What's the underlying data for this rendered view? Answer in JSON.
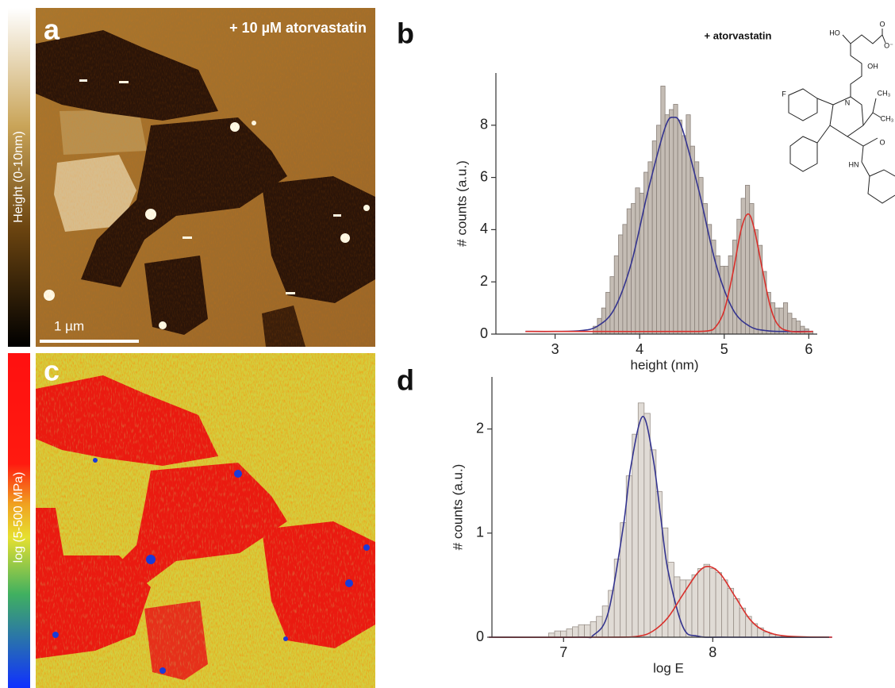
{
  "panels": {
    "a": {
      "label": "a",
      "annotation": "+ 10 µM atorvastatin",
      "colorbar_label": "Height (0-10nm)",
      "scale_bar": "1 µm"
    },
    "c": {
      "label": "c",
      "colorbar_label": "log (5-500 MPa)"
    }
  },
  "molecule": {
    "labels": [
      "HO",
      "O",
      "O⁻",
      "OH",
      "F",
      "N",
      "CH₃",
      "CH₃",
      "O",
      "HN"
    ]
  },
  "chart_data": [
    {
      "type": "histogram",
      "panel_label": "b",
      "annotation": "+ atorvastatin",
      "xlabel": "height (nm)",
      "ylabel": "# counts (a.u.)",
      "bins": [
        3.45,
        3.5,
        3.55,
        3.6,
        3.65,
        3.7,
        3.75,
        3.8,
        3.85,
        3.9,
        3.95,
        4.0,
        4.05,
        4.1,
        4.15,
        4.2,
        4.25,
        4.3,
        4.35,
        4.4,
        4.45,
        4.5,
        4.55,
        4.6,
        4.65,
        4.7,
        4.75,
        4.8,
        4.85,
        4.9,
        4.95,
        5.0,
        5.05,
        5.1,
        5.15,
        5.2,
        5.25,
        5.3,
        5.35,
        5.4,
        5.45,
        5.5,
        5.55,
        5.6,
        5.65,
        5.7,
        5.75,
        5.8,
        5.85,
        5.9,
        5.95,
        6.0,
        6.05
      ],
      "values": [
        0.3,
        0.6,
        1.0,
        1.6,
        2.2,
        3.0,
        3.8,
        4.2,
        4.8,
        5.0,
        5.6,
        5.4,
        6.2,
        6.6,
        7.4,
        8.0,
        9.5,
        8.4,
        8.6,
        8.8,
        8.2,
        7.6,
        8.4,
        7.2,
        6.6,
        6.0,
        5.0,
        4.2,
        3.6,
        3.0,
        2.6,
        2.6,
        3.0,
        3.6,
        4.4,
        5.2,
        5.7,
        5.0,
        4.0,
        3.4,
        2.4,
        1.6,
        1.2,
        1.0,
        1.0,
        1.2,
        0.8,
        0.6,
        0.5,
        0.3,
        0.2,
        0.1
      ],
      "color": "#c4bcb4",
      "edgecolor": "#8a817a",
      "fits": [
        {
          "color": "#34348f",
          "x": [
            2.65,
            3.0,
            3.3,
            3.5,
            3.7,
            3.9,
            4.1,
            4.3,
            4.4,
            4.5,
            4.7,
            4.9,
            5.1,
            5.3,
            5.5,
            5.7,
            6.05
          ],
          "values": [
            0.1,
            0.1,
            0.13,
            0.3,
            0.96,
            2.7,
            5.5,
            7.9,
            8.3,
            7.9,
            5.5,
            2.7,
            0.96,
            0.3,
            0.13,
            0.1,
            0.1
          ]
        },
        {
          "color": "#d9302c",
          "x": [
            2.65,
            3.5,
            4.5,
            4.8,
            4.9,
            5.0,
            5.1,
            5.2,
            5.28,
            5.35,
            5.45,
            5.55,
            5.65,
            5.8,
            6.05
          ],
          "values": [
            0.1,
            0.1,
            0.1,
            0.12,
            0.28,
            0.9,
            2.3,
            4.0,
            4.6,
            4.1,
            2.5,
            1.0,
            0.3,
            0.1,
            0.1
          ]
        }
      ],
      "xlim": [
        2.3,
        6.1
      ],
      "ylim": [
        0,
        10
      ],
      "xticks": [
        3,
        4,
        5,
        6
      ],
      "yticks": [
        0,
        2,
        4,
        6,
        8
      ]
    },
    {
      "type": "histogram",
      "panel_label": "d",
      "xlabel": "log E",
      "ylabel": "# counts (a.u.)",
      "bins": [
        6.9,
        6.94,
        6.98,
        7.02,
        7.06,
        7.1,
        7.14,
        7.18,
        7.22,
        7.26,
        7.3,
        7.34,
        7.38,
        7.42,
        7.46,
        7.5,
        7.54,
        7.58,
        7.62,
        7.66,
        7.7,
        7.74,
        7.78,
        7.82,
        7.86,
        7.9,
        7.94,
        7.98,
        8.02,
        8.06,
        8.1,
        8.14,
        8.18,
        8.22,
        8.26,
        8.3,
        8.34,
        8.38,
        8.42,
        8.46,
        8.5
      ],
      "values": [
        0.04,
        0.06,
        0.06,
        0.08,
        0.1,
        0.12,
        0.12,
        0.15,
        0.2,
        0.3,
        0.45,
        0.75,
        1.1,
        1.55,
        1.95,
        2.25,
        2.15,
        1.8,
        1.4,
        1.05,
        0.72,
        0.58,
        0.55,
        0.55,
        0.6,
        0.66,
        0.7,
        0.66,
        0.62,
        0.55,
        0.47,
        0.37,
        0.28,
        0.2,
        0.13,
        0.09,
        0.05,
        0.03,
        0.02,
        0.01
      ],
      "color": "#e0dbd5",
      "edgecolor": "#9a918a",
      "fits": [
        {
          "color": "#34348f",
          "x": [
            6.5,
            7.1,
            7.2,
            7.3,
            7.4,
            7.45,
            7.53,
            7.6,
            7.65,
            7.7,
            7.8,
            7.9,
            8.1,
            8.8
          ],
          "values": [
            0,
            0,
            0.02,
            0.24,
            1.06,
            1.63,
            2.12,
            1.72,
            1.17,
            0.64,
            0.1,
            0.01,
            0,
            0
          ]
        },
        {
          "color": "#d9302c",
          "x": [
            6.5,
            7.3,
            7.5,
            7.6,
            7.7,
            7.8,
            7.9,
            7.97,
            8.05,
            8.15,
            8.25,
            8.35,
            8.5,
            8.8
          ],
          "values": [
            0,
            0,
            0.01,
            0.06,
            0.19,
            0.41,
            0.62,
            0.68,
            0.61,
            0.39,
            0.17,
            0.06,
            0.01,
            0
          ]
        }
      ],
      "xlim": [
        6.52,
        8.78
      ],
      "ylim": [
        0,
        2.5
      ],
      "xticks": [
        7,
        8
      ],
      "yticks": [
        0,
        1,
        2
      ]
    }
  ]
}
